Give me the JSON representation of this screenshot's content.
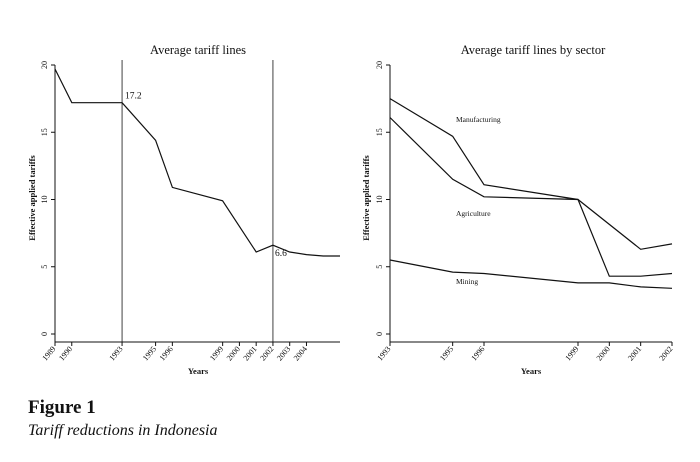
{
  "chart_data": [
    {
      "type": "line",
      "title": "Average tariff lines",
      "xlabel": "Years",
      "ylabel": "Effective applied tariffs",
      "ylim": [
        0,
        20
      ],
      "yticks": [
        "0",
        "5",
        "10",
        "15",
        "20"
      ],
      "x_tick_labels": [
        "1989",
        "1990",
        "1993",
        "1995",
        "1996",
        "1999",
        "2000",
        "2001",
        "2002",
        "2003",
        "2004"
      ],
      "series": [
        {
          "name": "Average tariff",
          "x": [
            1989,
            1990,
            1993,
            1995,
            1996,
            1999,
            2001,
            2002,
            2003,
            2004,
            2005,
            2006
          ],
          "values": [
            19.7,
            17.2,
            17.2,
            14.4,
            10.9,
            9.9,
            6.1,
            6.6,
            6.1,
            5.9,
            5.8,
            5.8
          ]
        }
      ],
      "vertical_lines": [
        1993,
        2002
      ],
      "annotations": [
        {
          "text": "17.2",
          "x": 1993,
          "y": 17.2
        },
        {
          "text": "6.6",
          "x": 2002,
          "y": 6.6
        }
      ]
    },
    {
      "type": "line",
      "title": "Average tariff lines by sector",
      "xlabel": "Years",
      "ylabel": "Effective applied tariffs",
      "ylim": [
        0,
        20
      ],
      "yticks": [
        "0",
        "5",
        "10",
        "15",
        "20"
      ],
      "x_tick_labels": [
        "1993",
        "1995",
        "1996",
        "1999",
        "2000",
        "2001",
        "2002"
      ],
      "series": [
        {
          "name": "Manufacturing",
          "x": [
            1993,
            1995,
            1996,
            1999,
            2001,
            2002
          ],
          "values": [
            17.5,
            14.7,
            11.1,
            10.0,
            6.3,
            6.7
          ]
        },
        {
          "name": "Agriculture",
          "x": [
            1993,
            1995,
            1996,
            1999,
            2000,
            2001,
            2002
          ],
          "values": [
            16.1,
            11.5,
            10.2,
            10.0,
            4.3,
            4.3,
            4.5
          ]
        },
        {
          "name": "Mining",
          "x": [
            1993,
            1995,
            1996,
            1999,
            2000,
            2001,
            2002
          ],
          "values": [
            5.5,
            4.6,
            4.5,
            3.8,
            3.8,
            3.5,
            3.4
          ]
        }
      ]
    }
  ],
  "caption": {
    "label": "Figure 1",
    "title": "Tariff reductions in Indonesia"
  }
}
